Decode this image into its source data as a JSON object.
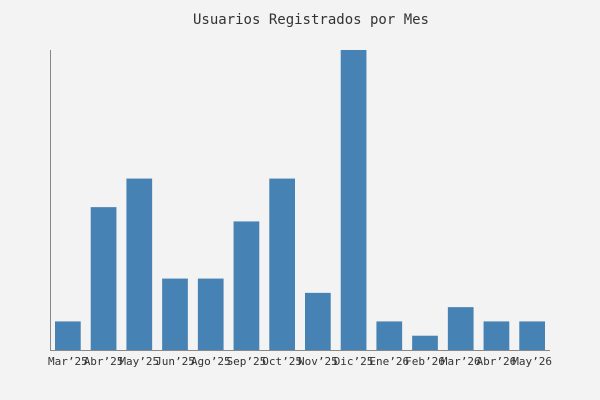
{
  "chart_data": {
    "type": "bar",
    "title": "Usuarios Registrados por Mes",
    "categories": [
      "Mar’25",
      "Abr’25",
      "May’25",
      "Jun’25",
      "Ago’25",
      "Sep’25",
      "Oct’25",
      "Nov’25",
      "Dic’25",
      "Ene’26",
      "Feb’26",
      "Mar’26",
      "Abr’26",
      "May’26"
    ],
    "values": [
      2,
      10,
      12,
      5,
      5,
      9,
      12,
      4,
      21,
      2,
      1,
      3,
      2,
      2
    ],
    "color": "#4682b4",
    "ylim": [
      0,
      21
    ]
  }
}
